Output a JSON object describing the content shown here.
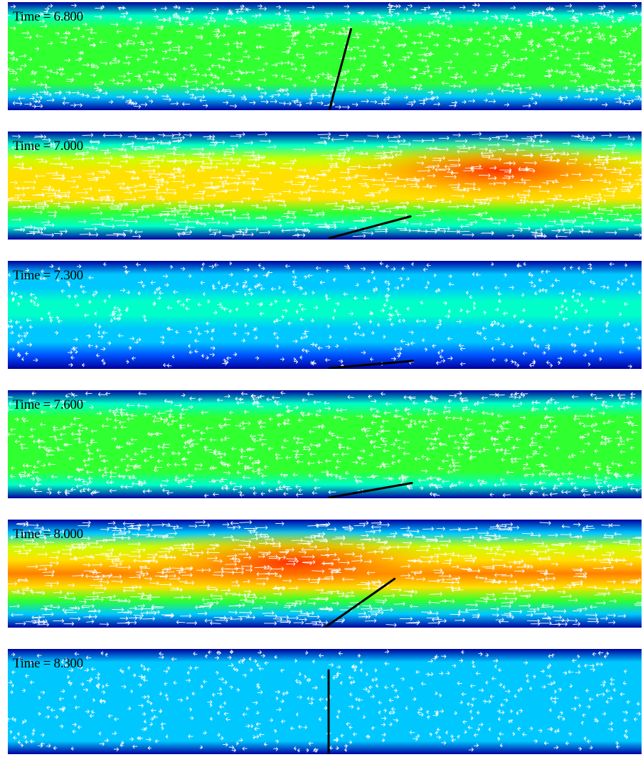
{
  "colormap": [
    "#0000a0",
    "#0050ff",
    "#00c8ff",
    "#00ffc8",
    "#30ff30",
    "#c8ff00",
    "#ffe000",
    "#ff8000",
    "#ff1000"
  ],
  "arrow_color": "#ffffff",
  "plate_color": "#000000",
  "frames": [
    {
      "time_label": "Time = 6.800",
      "plate_angle_deg": 75,
      "flow_direction": "right",
      "speed": "low-medium"
    },
    {
      "time_label": "Time = 7.000",
      "plate_angle_deg": 15,
      "flow_direction": "right",
      "speed": "high"
    },
    {
      "time_label": "Time = 7.300",
      "plate_angle_deg": 5,
      "flow_direction": "mixed",
      "speed": "low"
    },
    {
      "time_label": "Time = 7.600",
      "plate_angle_deg": 10,
      "flow_direction": "left",
      "speed": "medium"
    },
    {
      "time_label": "Time = 8.000",
      "plate_angle_deg": 35,
      "flow_direction": "right",
      "speed": "high"
    },
    {
      "time_label": "Time = 8.300",
      "plate_angle_deg": 90,
      "flow_direction": "mixed",
      "speed": "low"
    }
  ]
}
